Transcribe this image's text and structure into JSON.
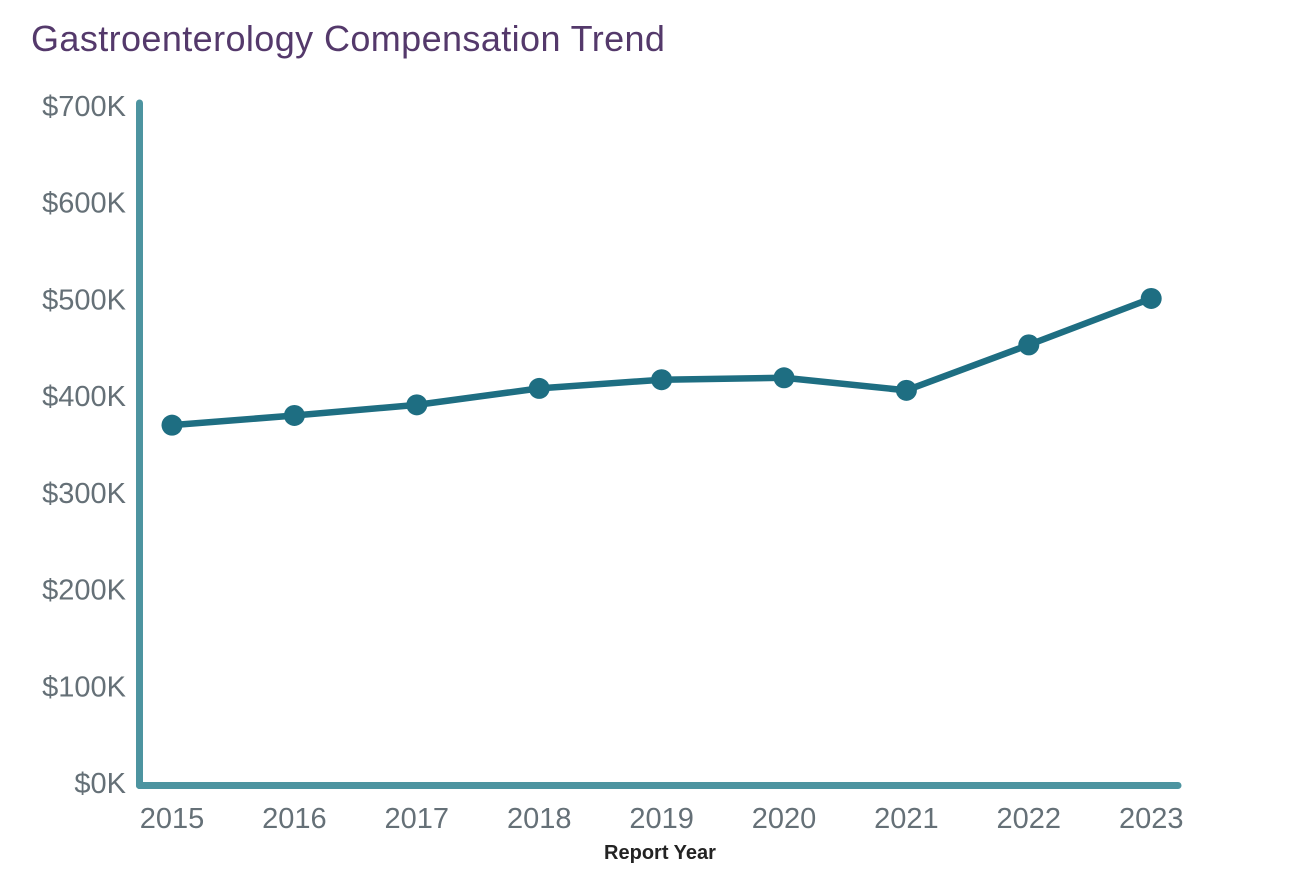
{
  "chart_data": {
    "type": "line",
    "title": "Gastroenterology Compensation Trend",
    "xlabel": "Report Year",
    "ylabel": "",
    "categories": [
      "2015",
      "2016",
      "2017",
      "2018",
      "2019",
      "2020",
      "2021",
      "2022",
      "2023"
    ],
    "values": [
      370000,
      380000,
      391000,
      408000,
      417000,
      419000,
      406000,
      453000,
      501000
    ],
    "ylim": [
      0,
      700000
    ],
    "yticks": {
      "values": [
        0,
        100000,
        200000,
        300000,
        400000,
        500000,
        600000,
        700000
      ],
      "labels": [
        "$0K",
        "$100K",
        "$200K",
        "$300K",
        "$400K",
        "$500K",
        "$600K",
        "$700K"
      ]
    },
    "grid": false,
    "legend": "none",
    "marker": "circle",
    "colors": {
      "line": "#1e6e82",
      "marker": "#1e6e82",
      "axis": "#4d94a0",
      "title": "#54396b",
      "tick_labels": "#657077",
      "xlabel": "#232323"
    }
  }
}
